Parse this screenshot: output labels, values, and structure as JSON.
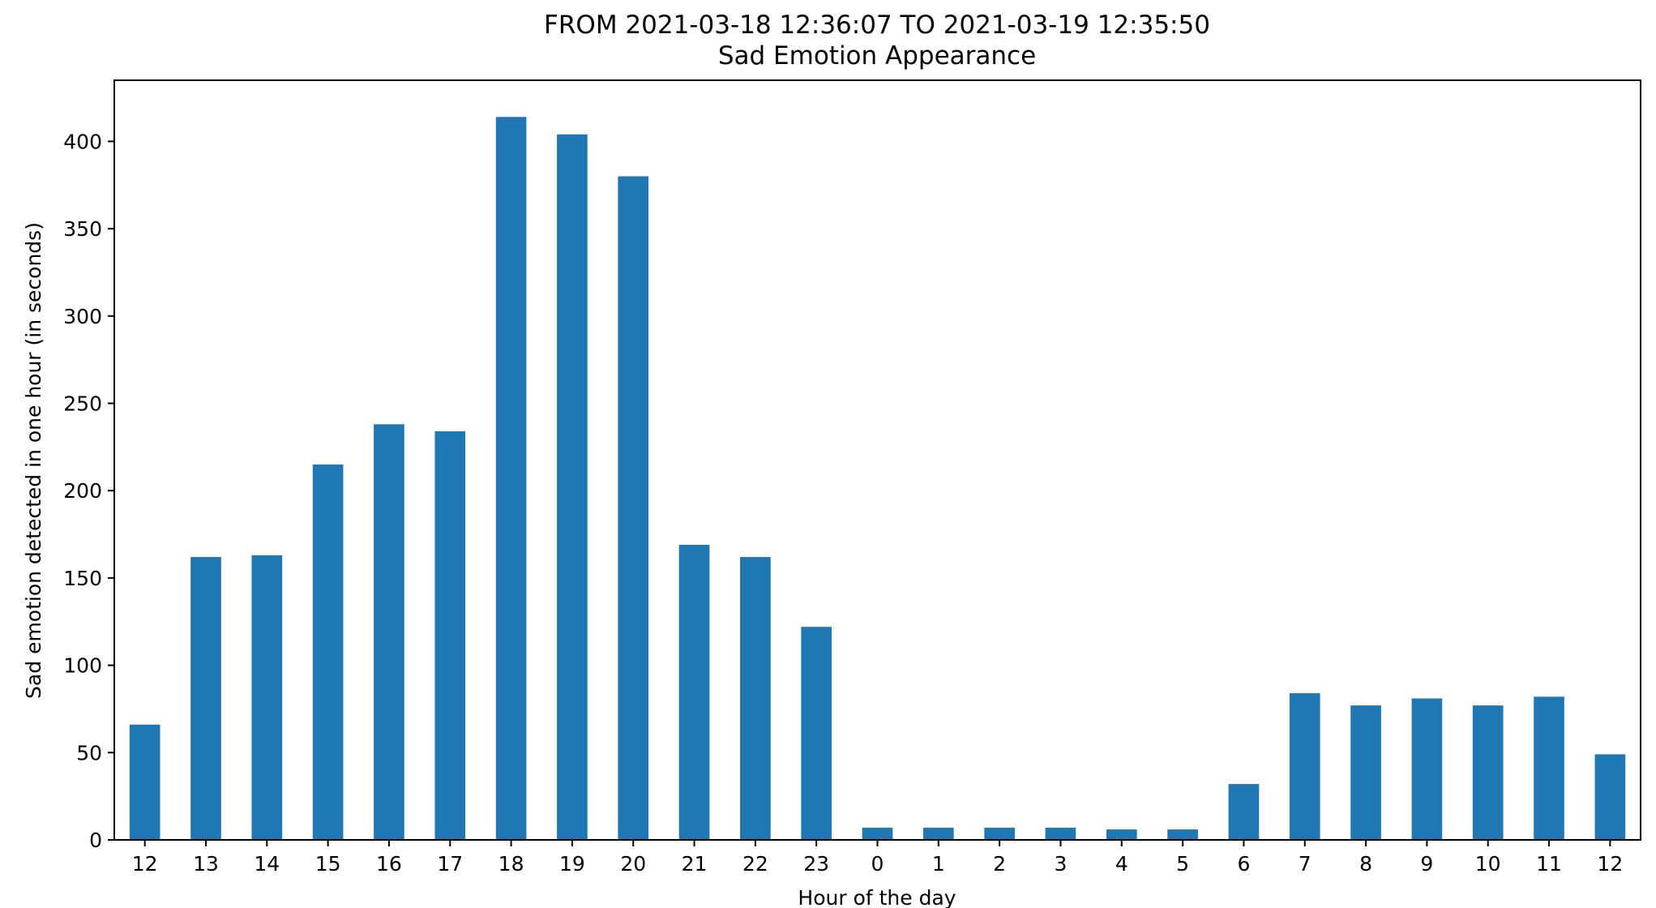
{
  "chart_data": {
    "type": "bar",
    "title": "FROM 2021-03-18 12:36:07 TO 2021-03-19 12:35:50",
    "subtitle": "Sad Emotion Appearance",
    "xlabel": "Hour of the day",
    "ylabel": "Sad emotion detected in one hour (in seconds)",
    "categories": [
      "12",
      "13",
      "14",
      "15",
      "16",
      "17",
      "18",
      "19",
      "20",
      "21",
      "22",
      "23",
      "0",
      "1",
      "2",
      "3",
      "4",
      "5",
      "6",
      "7",
      "8",
      "9",
      "10",
      "11",
      "12"
    ],
    "values": [
      66,
      162,
      163,
      215,
      238,
      234,
      414,
      404,
      380,
      169,
      162,
      122,
      7,
      7,
      7,
      7,
      6,
      6,
      32,
      84,
      77,
      81,
      77,
      82,
      49
    ],
    "ylim": [
      0,
      435
    ],
    "yticks": [
      0,
      50,
      100,
      150,
      200,
      250,
      300,
      350,
      400
    ],
    "bar_color": "#1f77b4",
    "grid": false,
    "legend": "none"
  }
}
